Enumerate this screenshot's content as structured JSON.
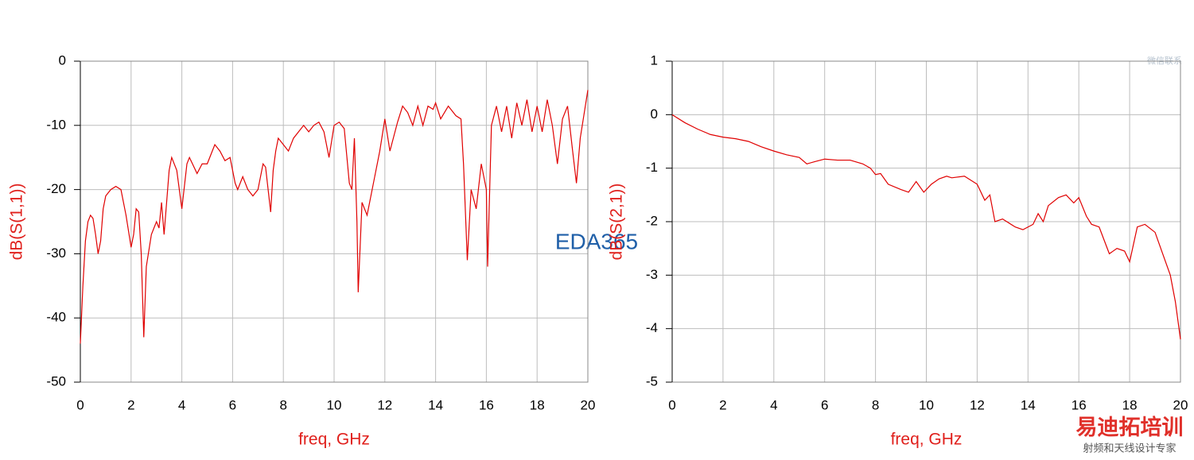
{
  "chart_data": [
    {
      "type": "line",
      "xlabel": "freq, GHz",
      "ylabel": "dB(S(1,1))",
      "xlim": [
        0,
        20
      ],
      "ylim": [
        -50,
        0
      ],
      "xticks": [
        0,
        2,
        4,
        6,
        8,
        10,
        12,
        14,
        16,
        18,
        20
      ],
      "yticks": [
        0,
        -10,
        -20,
        -30,
        -40,
        -50
      ],
      "grid": true,
      "series": [
        {
          "name": "dB(S(1,1))",
          "color": "#e00000",
          "x": [
            0,
            0.1,
            0.2,
            0.3,
            0.4,
            0.5,
            0.6,
            0.7,
            0.8,
            0.9,
            1.0,
            1.2,
            1.4,
            1.6,
            1.8,
            2.0,
            2.1,
            2.2,
            2.3,
            2.4,
            2.5,
            2.6,
            2.8,
            3.0,
            3.1,
            3.2,
            3.3,
            3.4,
            3.5,
            3.6,
            3.8,
            4.0,
            4.2,
            4.3,
            4.6,
            4.8,
            5.0,
            5.2,
            5.3,
            5.5,
            5.7,
            5.9,
            6.1,
            6.2,
            6.4,
            6.6,
            6.8,
            7.0,
            7.2,
            7.3,
            7.5,
            7.6,
            7.7,
            7.8,
            8.0,
            8.2,
            8.4,
            8.6,
            8.8,
            9.0,
            9.2,
            9.4,
            9.6,
            9.8,
            10.0,
            10.2,
            10.4,
            10.6,
            10.7,
            10.8,
            10.9,
            10.95,
            11.1,
            11.3,
            11.4,
            11.6,
            11.8,
            12.0,
            12.2,
            12.5,
            12.7,
            12.9,
            13.1,
            13.3,
            13.5,
            13.7,
            13.9,
            14.0,
            14.2,
            14.5,
            14.8,
            15.0,
            15.1,
            15.25,
            15.4,
            15.6,
            15.8,
            16.0,
            16.05,
            16.2,
            16.4,
            16.6,
            16.8,
            17.0,
            17.2,
            17.4,
            17.6,
            17.8,
            18.0,
            18.2,
            18.4,
            18.6,
            18.8,
            19.0,
            19.2,
            19.4,
            19.55,
            19.7,
            19.9,
            20
          ],
          "values": [
            -44,
            -35,
            -28,
            -25,
            -24,
            -24.5,
            -27,
            -30,
            -28,
            -23,
            -21,
            -20,
            -19.5,
            -20,
            -24,
            -29,
            -27,
            -23,
            -23.5,
            -30,
            -43,
            -32,
            -27,
            -25,
            -26,
            -22,
            -27,
            -22,
            -17,
            -15,
            -17,
            -23,
            -16,
            -15,
            -17.5,
            -16,
            -16,
            -14,
            -13,
            -14,
            -15.5,
            -15,
            -19,
            -20,
            -18,
            -20,
            -21,
            -20,
            -16,
            -16.5,
            -23.5,
            -17,
            -14,
            -12,
            -13,
            -14,
            -12,
            -11,
            -10,
            -11,
            -10,
            -9.5,
            -11,
            -15,
            -10,
            -9.5,
            -10.5,
            -19,
            -20,
            -12,
            -25,
            -36,
            -22,
            -24,
            -22,
            -18,
            -14,
            -9,
            -14,
            -9.5,
            -7,
            -8,
            -10,
            -7,
            -10,
            -7,
            -7.5,
            -6.5,
            -9,
            -7,
            -8.5,
            -9,
            -16,
            -31,
            -20,
            -23,
            -16,
            -20,
            -32,
            -10,
            -7,
            -11,
            -7,
            -12,
            -6.5,
            -10,
            -6,
            -11,
            -7,
            -11,
            -6,
            -10,
            -16,
            -9,
            -7,
            -14,
            -19,
            -12,
            -7,
            -4.5
          ]
        }
      ]
    },
    {
      "type": "line",
      "xlabel": "freq, GHz",
      "ylabel": "dB(S(2,1))",
      "xlim": [
        0,
        20
      ],
      "ylim": [
        -5,
        1
      ],
      "xticks": [
        0,
        2,
        4,
        6,
        8,
        10,
        12,
        14,
        16,
        18,
        20
      ],
      "yticks": [
        1,
        0,
        -1,
        -2,
        -3,
        -4,
        -5
      ],
      "grid": true,
      "series": [
        {
          "name": "dB(S(2,1))",
          "color": "#e00000",
          "x": [
            0,
            0.5,
            1,
            1.5,
            2,
            2.5,
            3,
            3.5,
            4,
            4.5,
            5,
            5.3,
            5.6,
            6,
            6.5,
            7,
            7.5,
            7.8,
            8,
            8.2,
            8.5,
            9,
            9.3,
            9.6,
            9.9,
            10.2,
            10.5,
            10.8,
            11,
            11.5,
            12,
            12.3,
            12.5,
            12.7,
            13,
            13.5,
            13.8,
            14,
            14.2,
            14.4,
            14.6,
            14.8,
            15.2,
            15.5,
            15.8,
            16,
            16.3,
            16.5,
            16.8,
            17.2,
            17.5,
            17.8,
            18.0,
            18.3,
            18.6,
            19,
            19.3,
            19.6,
            19.8,
            20
          ],
          "values": [
            0,
            -0.15,
            -0.27,
            -0.37,
            -0.42,
            -0.45,
            -0.5,
            -0.6,
            -0.68,
            -0.75,
            -0.8,
            -0.92,
            -0.88,
            -0.83,
            -0.85,
            -0.85,
            -0.92,
            -1.0,
            -1.12,
            -1.1,
            -1.3,
            -1.4,
            -1.45,
            -1.25,
            -1.45,
            -1.3,
            -1.2,
            -1.15,
            -1.18,
            -1.15,
            -1.3,
            -1.6,
            -1.5,
            -2.0,
            -1.95,
            -2.1,
            -2.15,
            -2.1,
            -2.05,
            -1.85,
            -2.0,
            -1.7,
            -1.55,
            -1.5,
            -1.65,
            -1.55,
            -1.9,
            -2.05,
            -2.1,
            -2.6,
            -2.5,
            -2.55,
            -2.75,
            -2.1,
            -2.05,
            -2.2,
            -2.6,
            -3.0,
            -3.5,
            -4.2
          ]
        }
      ]
    }
  ],
  "watermarks": {
    "center": "EDA365",
    "brand": "易迪拓培训",
    "slogan": "射频和天线设计专家",
    "contact": "微信联系"
  }
}
